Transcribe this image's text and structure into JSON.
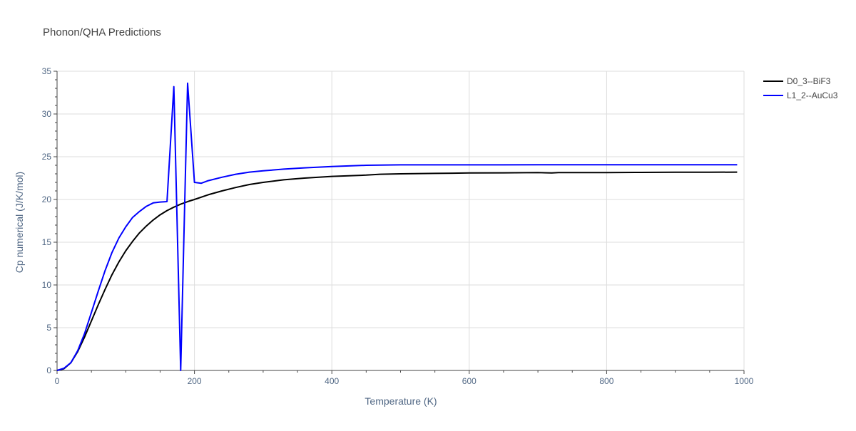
{
  "chart_data": {
    "type": "line",
    "title": "Phonon/QHA Predictions",
    "xlabel": "Temperature (K)",
    "ylabel": "Cp numerical (J/K/mol)",
    "xlim": [
      0,
      1000
    ],
    "ylim": [
      0,
      35
    ],
    "x_ticks": [
      0,
      200,
      400,
      600,
      800,
      1000
    ],
    "x_tick_labels": [
      "0",
      "200",
      "400",
      "600",
      "800",
      "1000"
    ],
    "y_ticks": [
      0,
      5,
      10,
      15,
      20,
      25,
      30,
      35
    ],
    "y_tick_labels": [
      "0",
      "5",
      "10",
      "15",
      "20",
      "25",
      "30",
      "35"
    ],
    "grid": true,
    "legend_position": "top-right",
    "series": [
      {
        "name": "D0_3--BiF3",
        "color": "#000000",
        "x": [
          0,
          10,
          20,
          30,
          40,
          50,
          60,
          70,
          80,
          90,
          100,
          110,
          120,
          130,
          140,
          150,
          160,
          170,
          180,
          190,
          200,
          220,
          240,
          260,
          280,
          300,
          330,
          360,
          400,
          450,
          470,
          500,
          550,
          600,
          650,
          700,
          720,
          730,
          750,
          800,
          850,
          900,
          950,
          990
        ],
        "y": [
          0,
          0.2,
          0.9,
          2.2,
          3.9,
          5.8,
          7.7,
          9.5,
          11.2,
          12.7,
          14.0,
          15.1,
          16.1,
          16.9,
          17.6,
          18.2,
          18.7,
          19.1,
          19.45,
          19.75,
          20.0,
          20.55,
          21.0,
          21.4,
          21.75,
          22.0,
          22.3,
          22.5,
          22.7,
          22.85,
          22.95,
          23.0,
          23.05,
          23.1,
          23.12,
          23.15,
          23.1,
          23.15,
          23.15,
          23.15,
          23.17,
          23.18,
          23.18,
          23.2
        ]
      },
      {
        "name": "L1_2--AuCu3",
        "color": "#0000ff",
        "x": [
          0,
          10,
          20,
          30,
          40,
          50,
          60,
          70,
          80,
          90,
          100,
          110,
          120,
          130,
          140,
          150,
          160,
          170,
          180,
          190,
          200,
          210,
          220,
          240,
          260,
          280,
          300,
          330,
          360,
          400,
          450,
          500,
          550,
          600,
          650,
          700,
          750,
          800,
          850,
          900,
          950,
          990
        ],
        "y": [
          0,
          0.25,
          0.9,
          2.3,
          4.3,
          6.8,
          9.3,
          11.7,
          13.8,
          15.5,
          16.8,
          17.9,
          18.6,
          19.2,
          19.6,
          19.7,
          19.75,
          33.2,
          0,
          33.6,
          22.0,
          21.9,
          22.2,
          22.6,
          22.95,
          23.2,
          23.35,
          23.55,
          23.7,
          23.85,
          24.0,
          24.05,
          24.05,
          24.05,
          24.05,
          24.06,
          24.06,
          24.06,
          24.06,
          24.07,
          24.07,
          24.07
        ]
      }
    ]
  }
}
